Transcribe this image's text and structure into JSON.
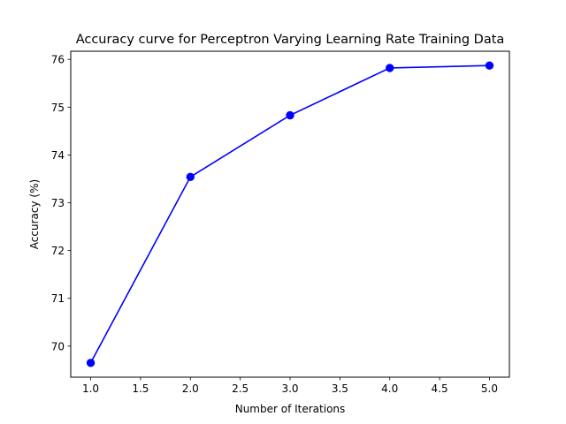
{
  "chart_data": {
    "type": "line",
    "title": "Accuracy curve for Perceptron  Varying Learning Rate Training Data",
    "xlabel": "Number of Iterations",
    "ylabel": "Accuracy (%)",
    "x": [
      1,
      2,
      3,
      4,
      5
    ],
    "series": [
      {
        "values": [
          69.65,
          73.54,
          74.83,
          75.82,
          75.87
        ],
        "color": "#0000ff",
        "marker": "circle"
      }
    ],
    "xlim": [
      0.8,
      5.2
    ],
    "ylim": [
      69.35,
      76.17
    ],
    "xticks": [
      "1.0",
      "1.5",
      "2.0",
      "2.5",
      "3.0",
      "3.5",
      "4.0",
      "4.5",
      "5.0"
    ],
    "yticks": [
      "70",
      "71",
      "72",
      "73",
      "74",
      "75",
      "76"
    ],
    "grid": false,
    "legend": "none"
  }
}
